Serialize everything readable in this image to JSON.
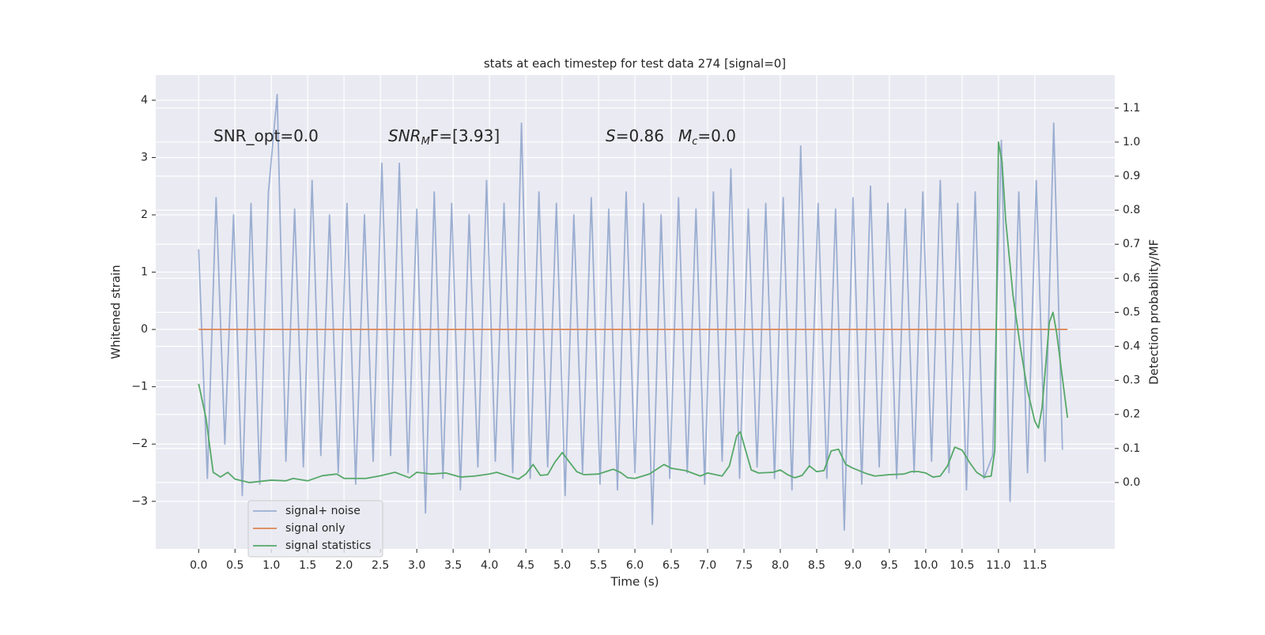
{
  "chart_data": {
    "type": "line",
    "title": "stats at each timestep for test data 274 [signal=0]",
    "xlabel": "Time (s)",
    "ylabel": "Whitened strain",
    "y2label": "Detection probability/MF",
    "background": "#eaeaf2",
    "grid": true,
    "legend": "lower left",
    "xlim": [
      -0.59,
      12.6
    ],
    "ylim": [
      -3.83,
      4.44
    ],
    "y2lim": [
      -0.195,
      1.197
    ],
    "xticks": [
      {
        "value": 0,
        "label": "0.0"
      },
      {
        "value": 0.5,
        "label": "0.5"
      },
      {
        "value": 1,
        "label": "1.0"
      },
      {
        "value": 1.5,
        "label": "1.5"
      },
      {
        "value": 2,
        "label": "2.0"
      },
      {
        "value": 2.5,
        "label": "2.5"
      },
      {
        "value": 3,
        "label": "3.0"
      },
      {
        "value": 3.5,
        "label": "3.5"
      },
      {
        "value": 4,
        "label": "4.0"
      },
      {
        "value": 4.5,
        "label": "4.5"
      },
      {
        "value": 5,
        "label": "5.0"
      },
      {
        "value": 5.5,
        "label": "5.5"
      },
      {
        "value": 6,
        "label": "6.0"
      },
      {
        "value": 6.5,
        "label": "6.5"
      },
      {
        "value": 7,
        "label": "7.0"
      },
      {
        "value": 7.5,
        "label": "7.5"
      },
      {
        "value": 8,
        "label": "8.0"
      },
      {
        "value": 8.5,
        "label": "8.5"
      },
      {
        "value": 9,
        "label": "9.0"
      },
      {
        "value": 9.5,
        "label": "9.5"
      },
      {
        "value": 10,
        "label": "10.0"
      },
      {
        "value": 10.5,
        "label": "10.5"
      },
      {
        "value": 11,
        "label": "11.0"
      },
      {
        "value": 11.5,
        "label": "11.5"
      }
    ],
    "yticks": [
      {
        "value": -3,
        "label": "−3"
      },
      {
        "value": -2,
        "label": "−2"
      },
      {
        "value": -1,
        "label": "−1"
      },
      0,
      1,
      2,
      3,
      4
    ],
    "y2ticks": [
      {
        "value": 0,
        "label": "0.0"
      },
      {
        "value": 0.1,
        "label": "0.1"
      },
      {
        "value": 0.2,
        "label": "0.2"
      },
      {
        "value": 0.3,
        "label": "0.3"
      },
      {
        "value": 0.4,
        "label": "0.4"
      },
      {
        "value": 0.5,
        "label": "0.5"
      },
      {
        "value": 0.6,
        "label": "0.6"
      },
      {
        "value": 0.7,
        "label": "0.7"
      },
      {
        "value": 0.8,
        "label": "0.8"
      },
      {
        "value": 0.9,
        "label": "0.9"
      },
      {
        "value": 1,
        "label": "1.0"
      },
      {
        "value": 1.1,
        "label": "1.1"
      }
    ],
    "annotations": [
      {
        "base": "SNR_opt=0.0",
        "italic": false
      },
      {
        "base": "SNR",
        "sub": "M",
        "rest": "F=[3.93]",
        "italic": true
      },
      {
        "base": "S",
        "rest": "=0.86",
        "italic": true
      },
      {
        "base": "M",
        "sub": "c",
        "rest": "=0.0",
        "italic": true
      }
    ],
    "series": [
      {
        "name": "signal+ noise",
        "color": "#4c72b0",
        "alpha": 0.5,
        "x": [
          0,
          0.12,
          0.24,
          0.36,
          0.48,
          0.6,
          0.72,
          0.84,
          0.96,
          1.08,
          1.2,
          1.32,
          1.44,
          1.56,
          1.68,
          1.8,
          1.92,
          2.04,
          2.16,
          2.28,
          2.4,
          2.52,
          2.64,
          2.76,
          2.88,
          3,
          3.12,
          3.24,
          3.36,
          3.48,
          3.6,
          3.72,
          3.84,
          3.96,
          4.08,
          4.2,
          4.32,
          4.44,
          4.56,
          4.68,
          4.8,
          4.92,
          5.04,
          5.16,
          5.28,
          5.4,
          5.52,
          5.64,
          5.76,
          5.88,
          6,
          6.12,
          6.24,
          6.36,
          6.48,
          6.6,
          6.72,
          6.84,
          6.96,
          7.08,
          7.2,
          7.32,
          7.44,
          7.56,
          7.68,
          7.8,
          7.92,
          8.04,
          8.16,
          8.28,
          8.4,
          8.52,
          8.64,
          8.76,
          8.88,
          9,
          9.12,
          9.24,
          9.36,
          9.48,
          9.6,
          9.72,
          9.84,
          9.96,
          10.08,
          10.2,
          10.32,
          10.44,
          10.56,
          10.68,
          10.8,
          10.92,
          11.04,
          11.16,
          11.28,
          11.4,
          11.52,
          11.64,
          11.76,
          11.88
        ],
        "values": [
          1.4,
          -2.6,
          2.3,
          -2.0,
          2.0,
          -2.9,
          2.2,
          -2.7,
          2.4,
          4.1,
          -2.3,
          2.1,
          -2.4,
          2.6,
          -2.2,
          2.0,
          -2.5,
          2.2,
          -2.7,
          2.0,
          -2.3,
          2.9,
          -2.2,
          2.9,
          -2.5,
          2.1,
          -3.2,
          2.4,
          -2.6,
          2.2,
          -2.8,
          2.0,
          -2.4,
          2.6,
          -2.3,
          2.2,
          -2.5,
          3.6,
          -2.6,
          2.4,
          -2.4,
          2.2,
          -2.9,
          2.0,
          -2.5,
          2.3,
          -2.7,
          2.1,
          -2.8,
          2.4,
          -2.5,
          2.2,
          -3.4,
          2.0,
          -2.6,
          2.3,
          -2.5,
          2.1,
          -2.7,
          2.4,
          -2.3,
          2.8,
          -2.6,
          2.1,
          -2.4,
          2.2,
          -2.6,
          2.3,
          -2.8,
          3.2,
          -2.4,
          2.2,
          -2.6,
          2.1,
          -3.5,
          2.3,
          -2.7,
          2.5,
          -2.4,
          2.2,
          -2.6,
          2.1,
          -2.5,
          2.4,
          -2.3,
          2.6,
          -2.5,
          2.2,
          -2.8,
          2.4,
          -2.6,
          -2.2,
          3.3,
          -3.0,
          2.4,
          -2.5,
          2.6,
          -2.3,
          3.6,
          -2.1
        ]
      },
      {
        "name": "signal only",
        "color": "#dd8452",
        "x": [
          0,
          11.95
        ],
        "values": [
          0,
          0
        ]
      },
      {
        "name": "signal statistics",
        "color": "#55a868",
        "axis": "y2",
        "x": [
          0,
          0.1,
          0.2,
          0.3,
          0.4,
          0.5,
          0.7,
          1.0,
          1.2,
          1.3,
          1.5,
          1.7,
          1.9,
          2.0,
          2.3,
          2.5,
          2.7,
          2.9,
          3.0,
          3.2,
          3.4,
          3.6,
          3.8,
          4.0,
          4.1,
          4.3,
          4.4,
          4.5,
          4.6,
          4.7,
          4.8,
          4.9,
          5.0,
          5.1,
          5.2,
          5.3,
          5.5,
          5.7,
          5.8,
          5.9,
          6.0,
          6.2,
          6.3,
          6.4,
          6.5,
          6.7,
          6.9,
          7.0,
          7.2,
          7.3,
          7.4,
          7.45,
          7.6,
          7.7,
          7.9,
          8.0,
          8.1,
          8.2,
          8.3,
          8.4,
          8.5,
          8.6,
          8.7,
          8.8,
          8.9,
          9.0,
          9.2,
          9.3,
          9.5,
          9.7,
          9.8,
          9.9,
          10.0,
          10.1,
          10.2,
          10.3,
          10.4,
          10.5,
          10.6,
          10.7,
          10.8,
          10.9,
          10.95,
          11.0,
          11.05,
          11.1,
          11.2,
          11.3,
          11.4,
          11.5,
          11.55,
          11.6,
          11.7,
          11.75,
          11.8,
          11.95
        ],
        "values": [
          0.29,
          0.19,
          0.03,
          0.016,
          0.03,
          0.01,
          0.0,
          0.007,
          0.005,
          0.012,
          0.005,
          0.02,
          0.025,
          0.012,
          0.012,
          0.02,
          0.03,
          0.014,
          0.03,
          0.025,
          0.028,
          0.016,
          0.019,
          0.025,
          0.03,
          0.016,
          0.01,
          0.025,
          0.053,
          0.021,
          0.023,
          0.06,
          0.088,
          0.06,
          0.032,
          0.023,
          0.025,
          0.039,
          0.03,
          0.014,
          0.012,
          0.025,
          0.039,
          0.053,
          0.042,
          0.035,
          0.019,
          0.028,
          0.019,
          0.049,
          0.137,
          0.149,
          0.037,
          0.028,
          0.03,
          0.037,
          0.023,
          0.014,
          0.021,
          0.049,
          0.032,
          0.035,
          0.093,
          0.098,
          0.053,
          0.042,
          0.025,
          0.019,
          0.023,
          0.025,
          0.032,
          0.032,
          0.028,
          0.016,
          0.019,
          0.049,
          0.104,
          0.095,
          0.06,
          0.03,
          0.016,
          0.019,
          0.095,
          1.0,
          0.94,
          0.77,
          0.55,
          0.4,
          0.27,
          0.18,
          0.16,
          0.22,
          0.47,
          0.5,
          0.44,
          0.19
        ]
      }
    ]
  }
}
